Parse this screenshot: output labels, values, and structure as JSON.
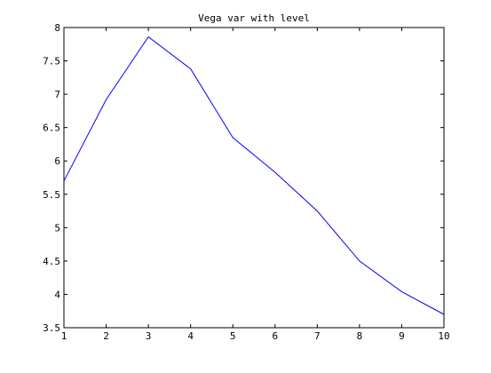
{
  "chart_data": {
    "type": "line",
    "title": "Vega var with level",
    "xlabel": "",
    "ylabel": "",
    "xlim": [
      1,
      10
    ],
    "ylim": [
      3.5,
      8
    ],
    "grid": false,
    "x_ticks": [
      1,
      2,
      3,
      4,
      5,
      6,
      7,
      8,
      9,
      10
    ],
    "x_tick_labels": [
      "1",
      "2",
      "3",
      "4",
      "5",
      "6",
      "7",
      "8",
      "9",
      "10"
    ],
    "y_ticks": [
      3.5,
      4,
      4.5,
      5,
      5.5,
      6,
      6.5,
      7,
      7.5,
      8
    ],
    "y_tick_labels": [
      "3.5",
      "4",
      "4.5",
      "5",
      "5.5",
      "6",
      "6.5",
      "7",
      "7.5",
      "8"
    ],
    "series": [
      {
        "color": "#0000ff",
        "x": [
          1,
          2,
          3,
          4,
          5,
          6,
          7,
          8,
          9,
          10
        ],
        "y": [
          5.7,
          6.92,
          7.86,
          7.38,
          6.35,
          5.83,
          5.25,
          4.5,
          4.04,
          3.7
        ]
      }
    ]
  }
}
